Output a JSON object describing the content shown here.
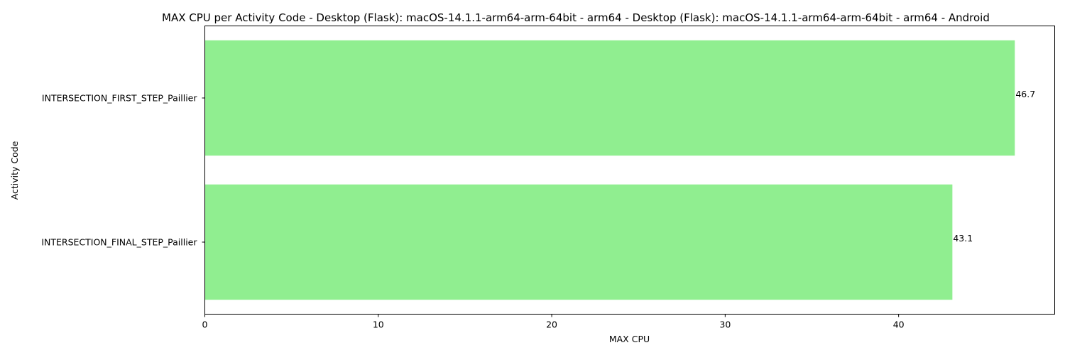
{
  "chart_data": {
    "type": "bar",
    "orientation": "horizontal",
    "title": "MAX CPU per Activity Code - Desktop (Flask): macOS-14.1.1-arm64-arm-64bit - arm64 - Desktop (Flask): macOS-14.1.1-arm64-arm-64bit - arm64 - Android",
    "xlabel": "MAX CPU",
    "ylabel": "Activity Code",
    "categories": [
      "INTERSECTION_FIRST_STEP_Paillier",
      "INTERSECTION_FINAL_STEP_Paillier"
    ],
    "values": [
      46.7,
      43.1
    ],
    "data_labels": [
      "46.7",
      "43.1"
    ],
    "xlim": [
      0,
      49
    ],
    "xticks": [
      0,
      10,
      20,
      30,
      40
    ],
    "xtick_labels": [
      "0",
      "10",
      "20",
      "30",
      "40"
    ],
    "bar_color": "#90ee90",
    "grid": false,
    "legend": false
  }
}
